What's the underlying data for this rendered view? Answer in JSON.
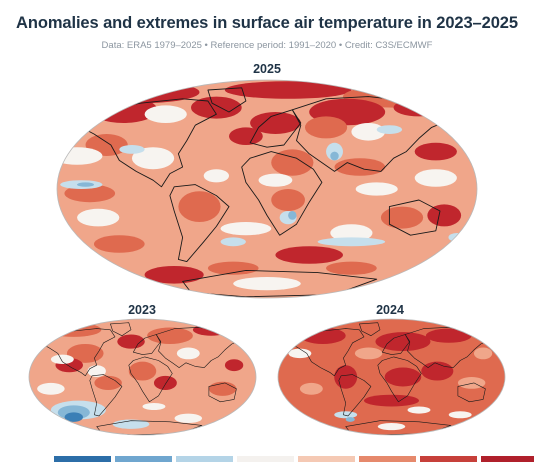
{
  "header": {
    "title": "Anomalies and extremes in surface air temperature in 2023–2025",
    "subtitle": "Data: ERA5 1979–2025 • Reference period: 1991–2020 • Credit: C3S/ECMWF"
  },
  "maps": {
    "main": {
      "label": "2025"
    },
    "left": {
      "label": "2023"
    },
    "right": {
      "label": "2024"
    }
  },
  "palette": {
    "ocean_base": "#f2c4b2",
    "strong_warm": "#c0262d",
    "warm": "#df6a4f",
    "mild_warm": "#f0a68a",
    "neutral": "#f7f4f0",
    "mild_cool": "#c6dfec",
    "cool": "#86b7d6",
    "strong_cool": "#3b7fb6",
    "coastline": "#1a1a1a"
  },
  "legend": {
    "swatches": [
      "#2c6ea8",
      "#6fa6cf",
      "#b4d4e7",
      "#f4f1ee",
      "#f5c9b4",
      "#e6896c",
      "#c7403a",
      "#b0202b"
    ]
  }
}
